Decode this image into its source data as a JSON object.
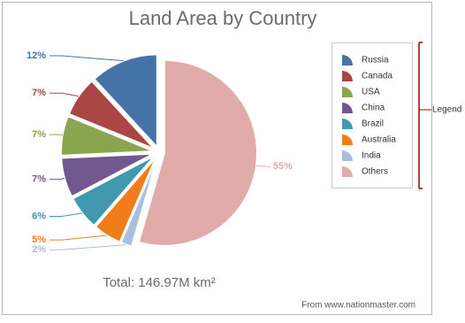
{
  "chart_data": {
    "type": "pie",
    "title": "Land Area by Country",
    "categories": [
      "Russia",
      "Canada",
      "USA",
      "China",
      "Brazil",
      "Australia",
      "India",
      "Others"
    ],
    "values": [
      12,
      7,
      7,
      7,
      6,
      5,
      2,
      55
    ],
    "value_labels": [
      "12%",
      "7%",
      "7%",
      "7%",
      "6%",
      "5%",
      "2%",
      "55%"
    ],
    "colors": [
      "#4572a7",
      "#aa4643",
      "#89a54e",
      "#71588f",
      "#4198af",
      "#f07d1a",
      "#a9bfe0",
      "#e0aba9"
    ],
    "legend": "right",
    "total": "Total: 146.97M km²",
    "source": "From www.nationmaster.com",
    "annotation": "Legend"
  }
}
